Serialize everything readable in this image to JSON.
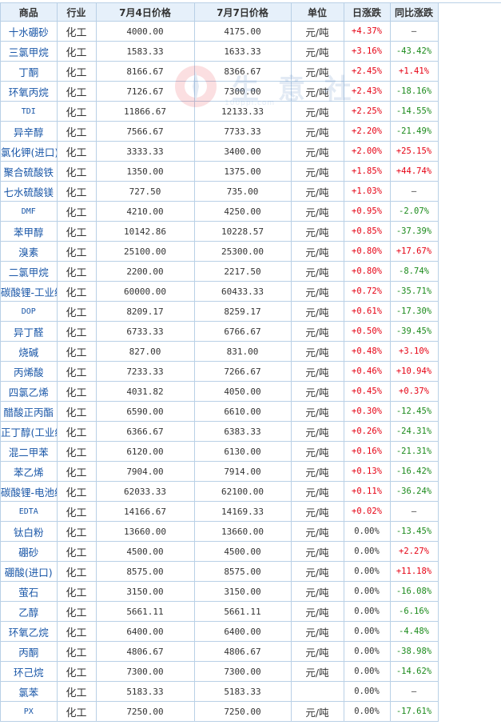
{
  "headers": [
    "商品",
    "行业",
    "7月4日价格",
    "7月7日价格",
    "单位",
    "日涨跌",
    "同比涨跌"
  ],
  "watermark": {
    "text": "生 意 社",
    "url": "100ppi.com"
  },
  "colors": {
    "link": "#1a57a8",
    "rise": "#e60012",
    "fall": "#1a8a1a",
    "header_bg": "#e6f0fa",
    "border": "#b9d0e6"
  },
  "rows": [
    {
      "name": "十水硼砂",
      "industry": "化工",
      "price1": "4000.00",
      "price2": "4175.00",
      "unit": "元/吨",
      "daily": "+4.37%",
      "yoy": "—"
    },
    {
      "name": "三氯甲烷",
      "industry": "化工",
      "price1": "1583.33",
      "price2": "1633.33",
      "unit": "元/吨",
      "daily": "+3.16%",
      "yoy": "-43.42%"
    },
    {
      "name": "丁酮",
      "industry": "化工",
      "price1": "8166.67",
      "price2": "8366.67",
      "unit": "元/吨",
      "daily": "+2.45%",
      "yoy": "+1.41%"
    },
    {
      "name": "环氧丙烷",
      "industry": "化工",
      "price1": "7126.67",
      "price2": "7300.00",
      "unit": "元/吨",
      "daily": "+2.43%",
      "yoy": "-18.16%"
    },
    {
      "name": "TDI",
      "industry": "化工",
      "price1": "11866.67",
      "price2": "12133.33",
      "unit": "元/吨",
      "daily": "+2.25%",
      "yoy": "-14.55%"
    },
    {
      "name": "异辛醇",
      "industry": "化工",
      "price1": "7566.67",
      "price2": "7733.33",
      "unit": "元/吨",
      "daily": "+2.20%",
      "yoy": "-21.49%"
    },
    {
      "name": "氯化钾(进口)",
      "industry": "化工",
      "price1": "3333.33",
      "price2": "3400.00",
      "unit": "元/吨",
      "daily": "+2.00%",
      "yoy": "+25.15%"
    },
    {
      "name": "聚合硫酸铁",
      "industry": "化工",
      "price1": "1350.00",
      "price2": "1375.00",
      "unit": "元/吨",
      "daily": "+1.85%",
      "yoy": "+44.74%"
    },
    {
      "name": "七水硫酸镁",
      "industry": "化工",
      "price1": "727.50",
      "price2": "735.00",
      "unit": "元/吨",
      "daily": "+1.03%",
      "yoy": "—"
    },
    {
      "name": "DMF",
      "industry": "化工",
      "price1": "4210.00",
      "price2": "4250.00",
      "unit": "元/吨",
      "daily": "+0.95%",
      "yoy": "-2.07%"
    },
    {
      "name": "苯甲醇",
      "industry": "化工",
      "price1": "10142.86",
      "price2": "10228.57",
      "unit": "元/吨",
      "daily": "+0.85%",
      "yoy": "-37.39%"
    },
    {
      "name": "溴素",
      "industry": "化工",
      "price1": "25100.00",
      "price2": "25300.00",
      "unit": "元/吨",
      "daily": "+0.80%",
      "yoy": "+17.67%"
    },
    {
      "name": "二氯甲烷",
      "industry": "化工",
      "price1": "2200.00",
      "price2": "2217.50",
      "unit": "元/吨",
      "daily": "+0.80%",
      "yoy": "-8.74%"
    },
    {
      "name": "碳酸锂-工业级",
      "industry": "化工",
      "price1": "60000.00",
      "price2": "60433.33",
      "unit": "元/吨",
      "daily": "+0.72%",
      "yoy": "-35.71%"
    },
    {
      "name": "DOP",
      "industry": "化工",
      "price1": "8209.17",
      "price2": "8259.17",
      "unit": "元/吨",
      "daily": "+0.61%",
      "yoy": "-17.30%"
    },
    {
      "name": "异丁醛",
      "industry": "化工",
      "price1": "6733.33",
      "price2": "6766.67",
      "unit": "元/吨",
      "daily": "+0.50%",
      "yoy": "-39.45%"
    },
    {
      "name": "烧碱",
      "industry": "化工",
      "price1": "827.00",
      "price2": "831.00",
      "unit": "元/吨",
      "daily": "+0.48%",
      "yoy": "+3.10%"
    },
    {
      "name": "丙烯酸",
      "industry": "化工",
      "price1": "7233.33",
      "price2": "7266.67",
      "unit": "元/吨",
      "daily": "+0.46%",
      "yoy": "+10.94%"
    },
    {
      "name": "四氯乙烯",
      "industry": "化工",
      "price1": "4031.82",
      "price2": "4050.00",
      "unit": "元/吨",
      "daily": "+0.45%",
      "yoy": "+0.37%"
    },
    {
      "name": "醋酸正丙酯",
      "industry": "化工",
      "price1": "6590.00",
      "price2": "6610.00",
      "unit": "元/吨",
      "daily": "+0.30%",
      "yoy": "-12.45%"
    },
    {
      "name": "正丁醇(工业级)",
      "industry": "化工",
      "price1": "6366.67",
      "price2": "6383.33",
      "unit": "元/吨",
      "daily": "+0.26%",
      "yoy": "-24.31%"
    },
    {
      "name": "混二甲苯",
      "industry": "化工",
      "price1": "6120.00",
      "price2": "6130.00",
      "unit": "元/吨",
      "daily": "+0.16%",
      "yoy": "-21.31%"
    },
    {
      "name": "苯乙烯",
      "industry": "化工",
      "price1": "7904.00",
      "price2": "7914.00",
      "unit": "元/吨",
      "daily": "+0.13%",
      "yoy": "-16.42%"
    },
    {
      "name": "碳酸锂-电池级",
      "industry": "化工",
      "price1": "62033.33",
      "price2": "62100.00",
      "unit": "元/吨",
      "daily": "+0.11%",
      "yoy": "-36.24%"
    },
    {
      "name": "EDTA",
      "industry": "化工",
      "price1": "14166.67",
      "price2": "14169.33",
      "unit": "元/吨",
      "daily": "+0.02%",
      "yoy": "—"
    },
    {
      "name": "钛白粉",
      "industry": "化工",
      "price1": "13660.00",
      "price2": "13660.00",
      "unit": "元/吨",
      "daily": "0.00%",
      "yoy": "-13.45%"
    },
    {
      "name": "硼砂",
      "industry": "化工",
      "price1": "4500.00",
      "price2": "4500.00",
      "unit": "元/吨",
      "daily": "0.00%",
      "yoy": "+2.27%"
    },
    {
      "name": "硼酸(进口)",
      "industry": "化工",
      "price1": "8575.00",
      "price2": "8575.00",
      "unit": "元/吨",
      "daily": "0.00%",
      "yoy": "+11.18%"
    },
    {
      "name": "萤石",
      "industry": "化工",
      "price1": "3150.00",
      "price2": "3150.00",
      "unit": "元/吨",
      "daily": "0.00%",
      "yoy": "-16.08%"
    },
    {
      "name": "乙醇",
      "industry": "化工",
      "price1": "5661.11",
      "price2": "5661.11",
      "unit": "元/吨",
      "daily": "0.00%",
      "yoy": "-6.16%"
    },
    {
      "name": "环氧乙烷",
      "industry": "化工",
      "price1": "6400.00",
      "price2": "6400.00",
      "unit": "元/吨",
      "daily": "0.00%",
      "yoy": "-4.48%"
    },
    {
      "name": "丙酮",
      "industry": "化工",
      "price1": "4806.67",
      "price2": "4806.67",
      "unit": "元/吨",
      "daily": "0.00%",
      "yoy": "-38.98%"
    },
    {
      "name": "环己烷",
      "industry": "化工",
      "price1": "7300.00",
      "price2": "7300.00",
      "unit": "元/吨",
      "daily": "0.00%",
      "yoy": "-14.62%"
    },
    {
      "name": "氯苯",
      "industry": "化工",
      "price1": "5183.33",
      "price2": "5183.33",
      "unit": "",
      "daily": "0.00%",
      "yoy": "—"
    },
    {
      "name": "PX",
      "industry": "化工",
      "price1": "7250.00",
      "price2": "7250.00",
      "unit": "元/吨",
      "daily": "0.00%",
      "yoy": "-17.61%"
    }
  ]
}
